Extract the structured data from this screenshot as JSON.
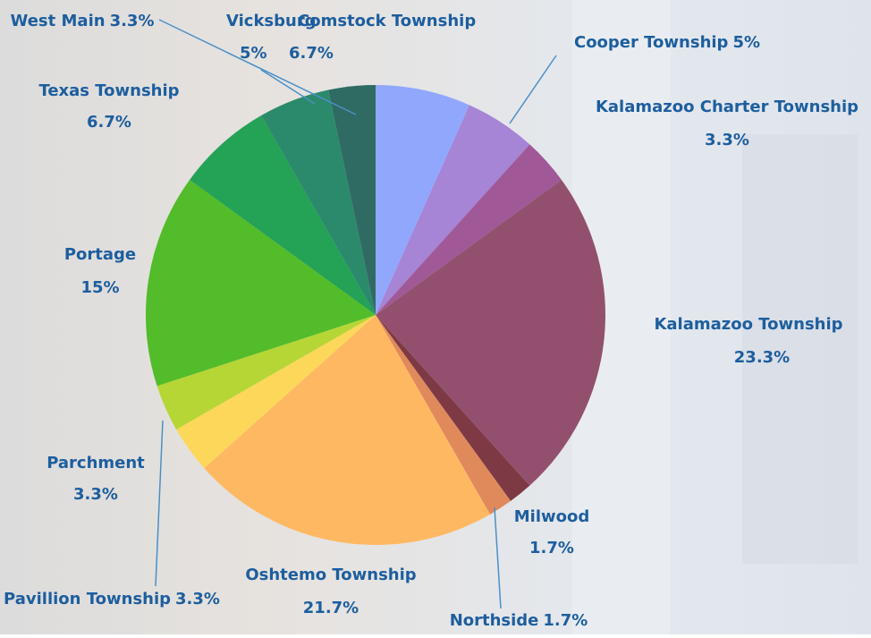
{
  "chart_data": {
    "type": "pie",
    "categories": [
      "Comstock Township",
      "Cooper Township",
      "Kalamazoo Charter Township",
      "Kalamazoo Township",
      "Milwood",
      "Northside",
      "Oshtemo Township",
      "Pavillion Township",
      "Parchment",
      "Portage",
      "Texas Township",
      "Vicksburg",
      "West Main"
    ],
    "values": [
      6.7,
      5,
      3.3,
      23.3,
      1.7,
      1.7,
      21.7,
      3.3,
      3.3,
      15,
      6.7,
      5,
      3.3
    ],
    "value_labels": [
      "6.7%",
      "5%",
      "3.3%",
      "23.3%",
      "1.7%",
      "1.7%",
      "21.7%",
      "3.3%",
      "3.3%",
      "15%",
      "6.7%",
      "5%",
      "3.3%"
    ],
    "colors": [
      "#91a7fc",
      "#a684d6",
      "#a05896",
      "#93506e",
      "#7e3a44",
      "#e08a5c",
      "#ffb862",
      "#fdd75a",
      "#b6d636",
      "#52bc2a",
      "#24a255",
      "#2c8a6c",
      "#2f6b62"
    ]
  }
}
